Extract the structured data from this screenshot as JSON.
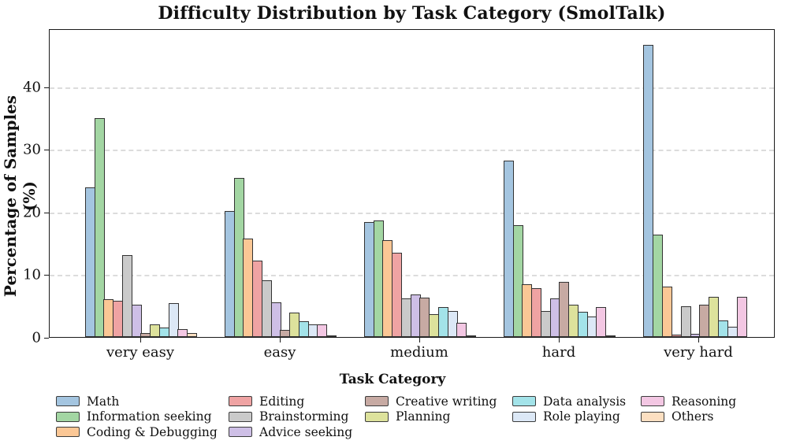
{
  "title": "Difficulty Distribution by Task Category (SmolTalk)",
  "chart_data": {
    "type": "bar",
    "title": "Difficulty Distribution by Task Category (SmolTalk)",
    "xlabel": "Task Category",
    "ylabel": "Percentage of Samples (%)",
    "ylim": [
      0,
      49.3
    ],
    "yticks": [
      0,
      10,
      20,
      30,
      40
    ],
    "grid": "horizontal dashed gridlines at y=10,20,30,40",
    "legend_position": "below plot, 5 columns, no frame",
    "categories": [
      "very easy",
      "easy",
      "medium",
      "hard",
      "very hard"
    ],
    "series": [
      {
        "name": "Math",
        "color": "#a4c5e0",
        "values": [
          23.9,
          20.1,
          18.4,
          28.2,
          46.7
        ]
      },
      {
        "name": "Information seeking",
        "color": "#a3d6a3",
        "values": [
          34.9,
          25.4,
          18.6,
          17.9,
          16.3
        ]
      },
      {
        "name": "Coding & Debugging",
        "color": "#fbc795",
        "values": [
          6.0,
          15.7,
          15.5,
          8.4,
          8.1
        ]
      },
      {
        "name": "Editing",
        "color": "#efa3a3",
        "values": [
          5.8,
          12.2,
          13.5,
          7.8,
          0.4
        ]
      },
      {
        "name": "Brainstorming",
        "color": "#cacaca",
        "values": [
          13.1,
          9.1,
          6.1,
          4.1,
          4.9
        ]
      },
      {
        "name": "Advice seeking",
        "color": "#cebfe6",
        "values": [
          5.1,
          5.5,
          6.8,
          6.2,
          0.5
        ]
      },
      {
        "name": "Creative writing",
        "color": "#c7aaa3",
        "values": [
          0.6,
          1.1,
          6.3,
          8.8,
          5.1
        ]
      },
      {
        "name": "Planning",
        "color": "#dde29c",
        "values": [
          2.0,
          3.9,
          3.7,
          5.2,
          6.4
        ]
      },
      {
        "name": "Data analysis",
        "color": "#a3e3e9",
        "values": [
          1.5,
          2.5,
          4.8,
          4.0,
          2.6
        ]
      },
      {
        "name": "Role playing",
        "color": "#dce8f6",
        "values": [
          5.4,
          2.0,
          4.2,
          3.3,
          1.6
        ]
      },
      {
        "name": "Reasoning",
        "color": "#f3c7e3",
        "values": [
          1.3,
          2.0,
          2.3,
          4.8,
          6.4
        ]
      },
      {
        "name": "Others",
        "color": "#fcdfc1",
        "values": [
          0.6,
          0.3,
          0.1,
          0.1,
          0.0
        ]
      }
    ],
    "bar_edge_color": "#333333",
    "spine_color": "#1a1a1a",
    "gridline_color": "#dcdcdc"
  },
  "legend": {
    "title": "Task Category",
    "columns": [
      [
        "Math",
        "Information seeking",
        "Coding & Debugging"
      ],
      [
        "Editing",
        "Brainstorming",
        "Advice seeking"
      ],
      [
        "Creative writing",
        "Planning"
      ],
      [
        "Data analysis",
        "Role playing"
      ],
      [
        "Reasoning",
        "Others"
      ]
    ]
  }
}
